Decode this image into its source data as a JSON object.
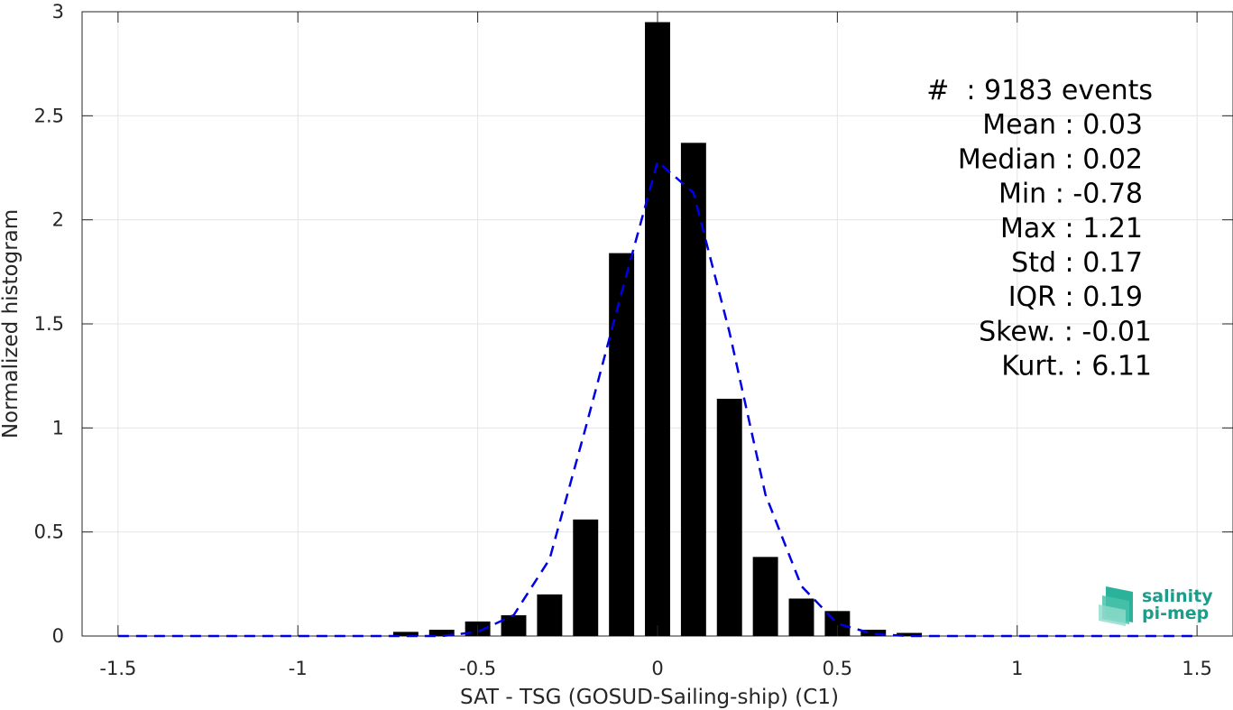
{
  "chart_data": {
    "type": "bar",
    "xlabel": "SAT - TSG (GOSUD-Sailing-ship) (C1)",
    "ylabel": "Normalized histogram",
    "xlim": [
      -1.6,
      1.6
    ],
    "ylim": [
      0,
      3
    ],
    "grid": true,
    "x_ticks": [
      -1.5,
      -1,
      -0.5,
      0,
      0.5,
      1,
      1.5
    ],
    "x_tick_labels": [
      "-1.5",
      "-1",
      "-0.5",
      "0",
      "0.5",
      "1",
      "1.5"
    ],
    "y_ticks": [
      0,
      0.5,
      1,
      1.5,
      2,
      2.5,
      3
    ],
    "y_tick_labels": [
      "0",
      "0.5",
      "1",
      "1.5",
      "2",
      "2.5",
      "3"
    ],
    "bar_width": 0.07,
    "bars": {
      "x": [
        -0.7,
        -0.6,
        -0.5,
        -0.4,
        -0.3,
        -0.2,
        -0.1,
        0,
        0.1,
        0.2,
        0.3,
        0.4,
        0.5,
        0.6,
        0.7
      ],
      "values": [
        0.02,
        0.03,
        0.07,
        0.1,
        0.2,
        0.56,
        1.84,
        2.95,
        2.37,
        1.14,
        0.38,
        0.18,
        0.12,
        0.03,
        0.015
      ],
      "color": "#000000"
    },
    "fit_line": {
      "style": "dashed",
      "color": "#0000e6",
      "x": [
        -1.5,
        -1.4,
        -1.3,
        -1.2,
        -1.1,
        -1.0,
        -0.9,
        -0.8,
        -0.7,
        -0.6,
        -0.5,
        -0.4,
        -0.3,
        -0.2,
        -0.1,
        0,
        0.1,
        0.2,
        0.3,
        0.4,
        0.5,
        0.6,
        0.7,
        0.8,
        0.9,
        1.0,
        1.1,
        1.2,
        1.3,
        1.4,
        1.5
      ],
      "y": [
        0,
        0,
        0,
        0,
        0,
        0,
        0,
        0,
        0,
        0,
        0.02,
        0.1,
        0.37,
        1.0,
        1.65,
        2.28,
        2.13,
        1.46,
        0.68,
        0.24,
        0.06,
        0.01,
        0,
        0,
        0,
        0,
        0,
        0,
        0,
        0,
        0
      ]
    },
    "annotations": [
      "#  : 9183 events",
      "Mean : 0.03",
      "Median : 0.02",
      "Min : -0.78",
      "Max : 1.21",
      "Std : 0.17",
      "IQR : 0.19",
      "Skew. : -0.01",
      "Kurt. : 6.11"
    ],
    "annotation_placement": "top-right"
  },
  "logo": {
    "line1": "salinity",
    "line2": "pi-mep",
    "color": "#1a9e8a"
  }
}
